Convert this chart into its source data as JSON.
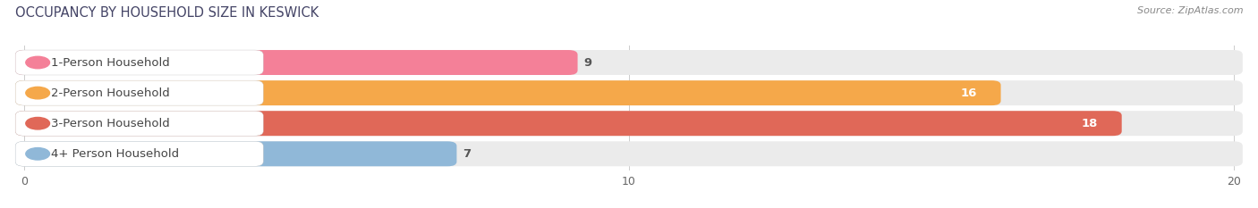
{
  "title": "OCCUPANCY BY HOUSEHOLD SIZE IN KESWICK",
  "source": "Source: ZipAtlas.com",
  "categories": [
    "1-Person Household",
    "2-Person Household",
    "3-Person Household",
    "4+ Person Household"
  ],
  "values": [
    9,
    16,
    18,
    7
  ],
  "bar_colors": [
    "#f48098",
    "#f5a84a",
    "#e06858",
    "#90b8d8"
  ],
  "background_color": "#ffffff",
  "bar_bg_color": "#ebebeb",
  "xlim_max": 20,
  "label_fontsize": 9.5,
  "title_fontsize": 10.5,
  "bar_height": 0.52,
  "fig_width": 14.06,
  "fig_height": 2.33,
  "xticks": [
    0,
    10,
    20
  ]
}
